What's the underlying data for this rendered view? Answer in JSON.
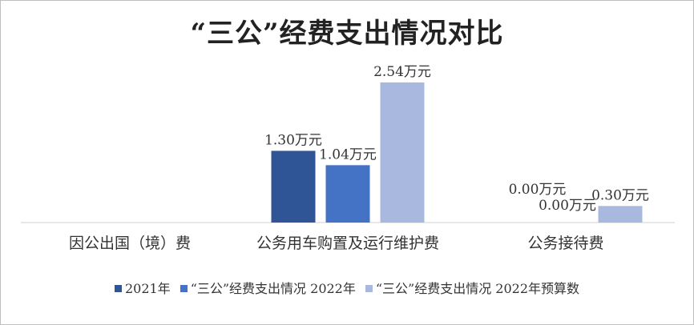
{
  "chart_data": {
    "type": "bar",
    "title": "“三公”经费支出情况对比",
    "categories": [
      "因公出国（境）费",
      "公务用车购置及运行维护费",
      "公务接待费"
    ],
    "series": [
      {
        "name": "2021年",
        "values": [
          null,
          1.3,
          null
        ],
        "labels": [
          "",
          "1.30万元",
          ""
        ],
        "color": "#2f5597"
      },
      {
        "name": "“三公”经费支出情况 2022年",
        "values": [
          null,
          1.04,
          0.0
        ],
        "labels": [
          "",
          "1.04万元",
          "0.00万元"
        ],
        "color": "#4472c4"
      },
      {
        "name": "“三公”经费支出情况 2022年预算数",
        "values": [
          null,
          2.54,
          0.3
        ],
        "labels": [
          "",
          "2.54万元",
          "0.30万元"
        ],
        "color": "#a9b8de"
      }
    ],
    "extra_labels": [
      "0.00万元"
    ],
    "ylim": [
      0,
      2.54
    ],
    "xlabel": "",
    "ylabel": "",
    "grid": false,
    "legend_position": "bottom"
  }
}
